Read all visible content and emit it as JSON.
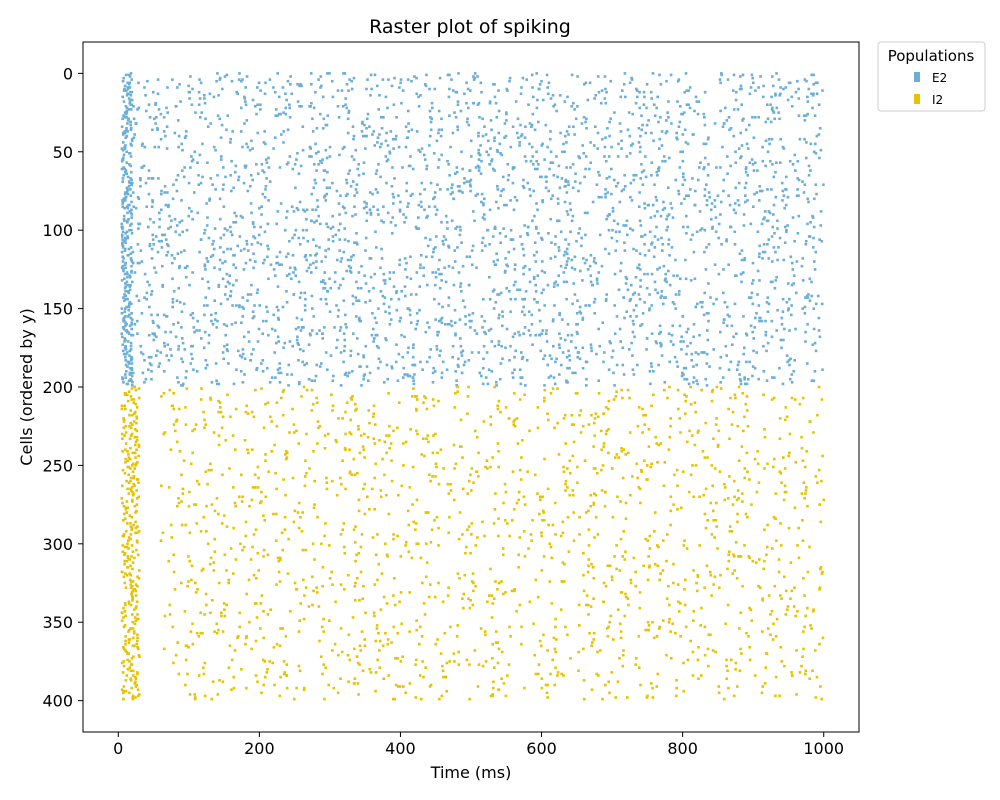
{
  "chart_data": {
    "type": "scatter",
    "title": "Raster plot of spiking",
    "xlabel": "Time (ms)",
    "ylabel": "Cells (ordered by y)",
    "xlim": [
      -50,
      1050
    ],
    "ylim": [
      420,
      -20
    ],
    "y_inverted": true,
    "grid": false,
    "xticks": [
      0,
      200,
      400,
      600,
      800,
      1000
    ],
    "yticks": [
      0,
      50,
      100,
      150,
      200,
      250,
      300,
      350,
      400
    ],
    "legend": {
      "title": "Populations",
      "placement": "outside-top-right",
      "entries": [
        "E2",
        "I2"
      ]
    },
    "series": [
      {
        "name": "E2",
        "color": "#6baed6",
        "cell_range": [
          0,
          199
        ],
        "time_range": [
          5,
          1000
        ],
        "approx_spike_count": 3400,
        "onset_burst_ms": [
          5,
          20
        ],
        "marker": "small square"
      },
      {
        "name": "I2",
        "color": "#e6c200",
        "cell_range": [
          200,
          399
        ],
        "time_range": [
          5,
          1000
        ],
        "approx_spike_count": 1950,
        "onset_burst_ms": [
          5,
          30
        ],
        "silent_gap_ms": [
          30,
          60
        ],
        "marker": "small square"
      }
    ]
  }
}
